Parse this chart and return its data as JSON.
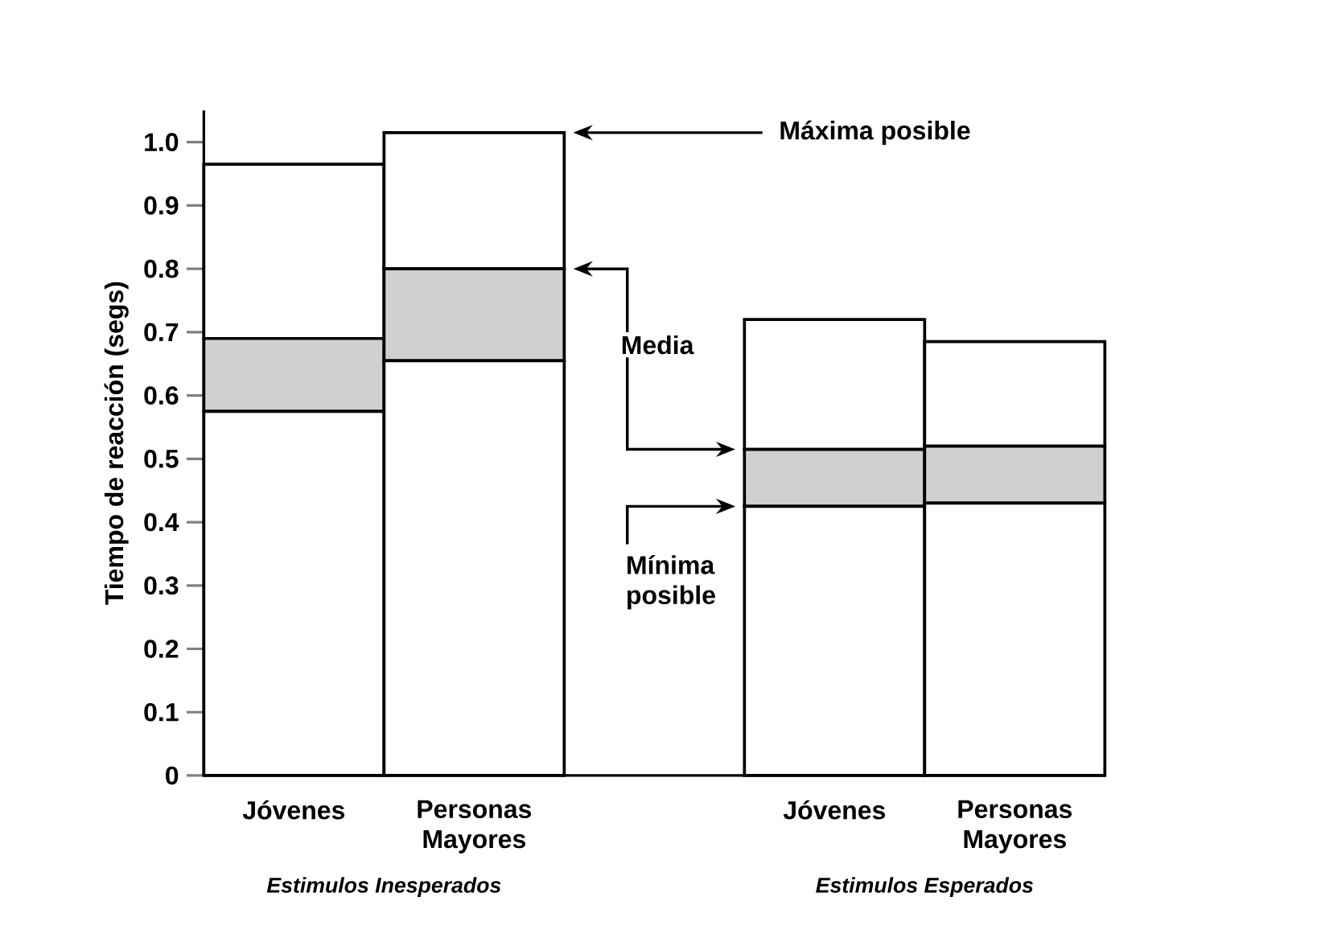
{
  "chart_data": {
    "type": "bar",
    "stacked": true,
    "ylabel": "Tiempo de reacción (segs)",
    "categories": [
      "Jóvenes",
      "Personas Mayores",
      null,
      "Jóvenes",
      "Personas Mayores"
    ],
    "series": [
      {
        "color": "#ffffff",
        "values": [
          0.575,
          0.655,
          null,
          0.425,
          0.43
        ]
      },
      {
        "color": "#d0d0d0",
        "values": [
          0.115,
          0.145,
          null,
          0.09,
          0.09
        ]
      },
      {
        "color": "#ffffff",
        "values": [
          0.275,
          0.215,
          null,
          0.205,
          0.165
        ]
      }
    ],
    "ylim": [
      0,
      1.05
    ],
    "yticks": [
      0,
      0.1,
      0.2,
      0.3,
      0.4,
      0.5,
      0.6,
      0.7,
      0.8,
      0.9,
      {
        "value": 1,
        "label": "1.0"
      }
    ],
    "annotations": [
      "Máxima posible",
      "Media",
      "Mínima posible",
      "Estimulos Inesperados",
      "Estimulos Esperados"
    ]
  }
}
